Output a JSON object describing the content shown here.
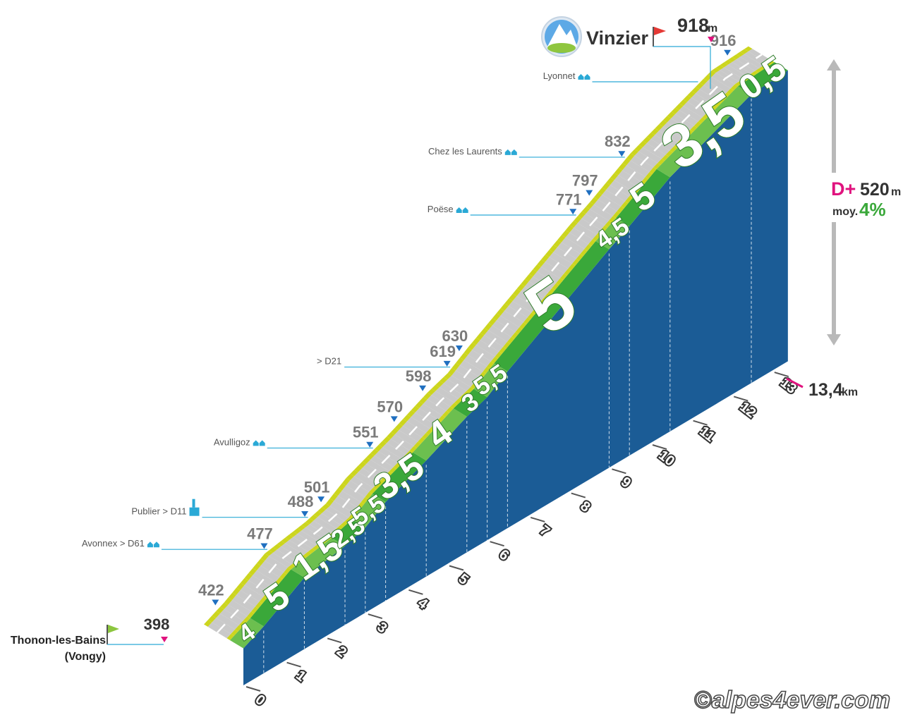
{
  "chart_data": {
    "type": "area",
    "title": "",
    "start": {
      "name": "Thonon-les-Bains",
      "sub": "(Vongy)",
      "elevation": "398"
    },
    "summit": {
      "name": "Vinzier",
      "elevation": "918",
      "unit": "m"
    },
    "total_distance": {
      "value": "13,4",
      "unit": "km"
    },
    "gain": {
      "label": "D+",
      "value": "520",
      "unit": "m",
      "avg_label": "moy.",
      "avg": "4%"
    },
    "km_ticks": [
      "0",
      "1",
      "2",
      "3",
      "4",
      "5",
      "6",
      "7",
      "8",
      "9",
      "10",
      "11",
      "12",
      "13"
    ],
    "segments": [
      {
        "from": 0.0,
        "to": 0.5,
        "label": "4"
      },
      {
        "from": 0.5,
        "to": 1.5,
        "label": "5"
      },
      {
        "from": 1.5,
        "to": 2.5,
        "label": "1,5"
      },
      {
        "from": 2.5,
        "to": 3.0,
        "label": "2,5"
      },
      {
        "from": 3.0,
        "to": 3.5,
        "label": "5,5"
      },
      {
        "from": 3.5,
        "to": 4.5,
        "label": "3,5"
      },
      {
        "from": 4.5,
        "to": 5.5,
        "label": "4"
      },
      {
        "from": 5.5,
        "to": 6.0,
        "label": "3"
      },
      {
        "from": 6.0,
        "to": 6.5,
        "label": "5,5"
      },
      {
        "from": 6.5,
        "to": 9.0,
        "label": "5"
      },
      {
        "from": 9.0,
        "to": 9.5,
        "label": "4,5"
      },
      {
        "from": 9.5,
        "to": 10.5,
        "label": "5"
      },
      {
        "from": 10.5,
        "to": 12.5,
        "label": "3,5"
      },
      {
        "from": 12.5,
        "to": 13.4,
        "label": "0,5"
      }
    ],
    "elevation_labels": [
      {
        "value": "398",
        "km": 0.0
      },
      {
        "value": "422",
        "km": 0.4
      },
      {
        "value": "477",
        "km": 1.6
      },
      {
        "value": "488",
        "km": 2.6
      },
      {
        "value": "501",
        "km": 3.0
      },
      {
        "value": "551",
        "km": 4.2
      },
      {
        "value": "570",
        "km": 4.8
      },
      {
        "value": "598",
        "km": 5.5
      },
      {
        "value": "619",
        "km": 6.1
      },
      {
        "value": "630",
        "km": 6.4
      },
      {
        "value": "771",
        "km": 9.2
      },
      {
        "value": "797",
        "km": 9.6
      },
      {
        "value": "832",
        "km": 10.4
      },
      {
        "value": "916",
        "km": 13.0
      }
    ],
    "places": [
      {
        "name": "Avonnex > D61",
        "km": 1.6,
        "icon": "houses-icon"
      },
      {
        "name": "Publier > D11",
        "km": 2.6,
        "icon": "church-icon"
      },
      {
        "name": "Avulligoz",
        "km": 4.2,
        "icon": "houses-icon"
      },
      {
        "name": "> D21",
        "km": 6.1,
        "icon": ""
      },
      {
        "name": "Poëse",
        "km": 9.2,
        "icon": "houses-icon"
      },
      {
        "name": "Chez les Laurents",
        "km": 10.4,
        "icon": "houses-icon"
      },
      {
        "name": "Lyonnet",
        "km": 12.2,
        "icon": "houses-icon"
      }
    ],
    "colors": {
      "side": "#1b5c96",
      "slope_dark": "#3aa83a",
      "slope_light": "#6cbf4f",
      "road": "#c9c9c9",
      "road_edge": "#ccd51e",
      "accent": "#e0137e",
      "leader": "#2aa9d6",
      "avg": "#3aa83a"
    }
  },
  "watermark": "©alpes4ever.com"
}
